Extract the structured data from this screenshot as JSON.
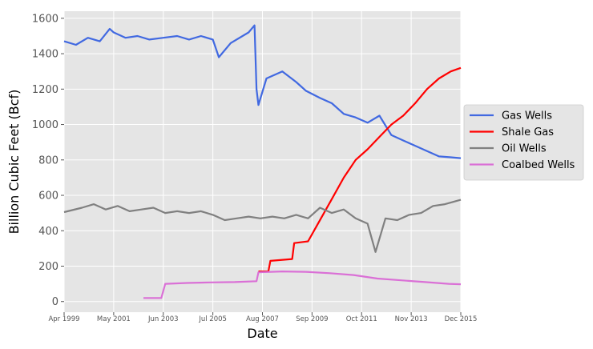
{
  "chart_data": {
    "type": "line",
    "xlabel": "Date",
    "ylabel": "Billion Cubic Feet (Bcf)",
    "x_tick_labels": [
      "Apr 1999",
      "May 2001",
      "Jun 2003",
      "Jul 2005",
      "Aug 2007",
      "Sep 2009",
      "Oct 2011",
      "Nov 2013",
      "Dec 2015"
    ],
    "x_ticks": [
      "1999-04",
      "2001-05",
      "2003-06",
      "2005-07",
      "2007-08",
      "2009-09",
      "2011-10",
      "2013-11",
      "2015-12"
    ],
    "xlim": [
      "1999-04",
      "2015-12"
    ],
    "y_ticks": [
      0,
      200,
      400,
      600,
      800,
      1000,
      1200,
      1400,
      1600
    ],
    "ylim": [
      -60,
      1640
    ],
    "grid": true,
    "legend_position": "right",
    "series": [
      {
        "name": "Gas Wells",
        "color": "#4169e1",
        "points": [
          [
            "1999-04",
            1470
          ],
          [
            "1999-10",
            1450
          ],
          [
            "2000-04",
            1490
          ],
          [
            "2000-10",
            1470
          ],
          [
            "2001-03",
            1540
          ],
          [
            "2001-05",
            1520
          ],
          [
            "2001-11",
            1490
          ],
          [
            "2002-05",
            1500
          ],
          [
            "2002-11",
            1480
          ],
          [
            "2003-06",
            1490
          ],
          [
            "2004-01",
            1500
          ],
          [
            "2004-07",
            1480
          ],
          [
            "2005-01",
            1500
          ],
          [
            "2005-07",
            1480
          ],
          [
            "2005-10",
            1380
          ],
          [
            "2006-04",
            1460
          ],
          [
            "2007-01",
            1520
          ],
          [
            "2007-04",
            1560
          ],
          [
            "2007-05",
            1200
          ],
          [
            "2007-06",
            1110
          ],
          [
            "2007-10",
            1260
          ],
          [
            "2008-06",
            1300
          ],
          [
            "2009-01",
            1240
          ],
          [
            "2009-06",
            1190
          ],
          [
            "2010-01",
            1150
          ],
          [
            "2010-07",
            1120
          ],
          [
            "2011-01",
            1060
          ],
          [
            "2011-07",
            1040
          ],
          [
            "2012-01",
            1010
          ],
          [
            "2012-07",
            1050
          ],
          [
            "2013-01",
            940
          ],
          [
            "2013-07",
            910
          ],
          [
            "2014-01",
            880
          ],
          [
            "2014-07",
            850
          ],
          [
            "2015-01",
            820
          ],
          [
            "2015-07",
            815
          ],
          [
            "2015-12",
            810
          ]
        ]
      },
      {
        "name": "Shale Gas",
        "color": "#ff0000",
        "points": [
          [
            "2007-06",
            170
          ],
          [
            "2007-11",
            170
          ],
          [
            "2007-12",
            230
          ],
          [
            "2008-11",
            240
          ],
          [
            "2008-12",
            330
          ],
          [
            "2009-07",
            340
          ],
          [
            "2009-12",
            440
          ],
          [
            "2010-06",
            560
          ],
          [
            "2011-01",
            700
          ],
          [
            "2011-07",
            800
          ],
          [
            "2012-01",
            860
          ],
          [
            "2012-07",
            930
          ],
          [
            "2013-01",
            1000
          ],
          [
            "2013-07",
            1050
          ],
          [
            "2014-01",
            1120
          ],
          [
            "2014-07",
            1200
          ],
          [
            "2015-01",
            1260
          ],
          [
            "2015-07",
            1300
          ],
          [
            "2015-12",
            1320
          ]
        ]
      },
      {
        "name": "Oil Wells",
        "color": "#808080",
        "points": [
          [
            "1999-04",
            505
          ],
          [
            "2000-01",
            530
          ],
          [
            "2000-07",
            550
          ],
          [
            "2001-01",
            520
          ],
          [
            "2001-07",
            540
          ],
          [
            "2002-01",
            510
          ],
          [
            "2002-07",
            520
          ],
          [
            "2003-01",
            530
          ],
          [
            "2003-07",
            500
          ],
          [
            "2004-01",
            510
          ],
          [
            "2004-07",
            500
          ],
          [
            "2005-01",
            510
          ],
          [
            "2005-07",
            490
          ],
          [
            "2006-01",
            460
          ],
          [
            "2006-07",
            470
          ],
          [
            "2007-01",
            480
          ],
          [
            "2007-07",
            470
          ],
          [
            "2008-01",
            480
          ],
          [
            "2008-07",
            470
          ],
          [
            "2009-01",
            490
          ],
          [
            "2009-07",
            470
          ],
          [
            "2010-01",
            530
          ],
          [
            "2010-07",
            500
          ],
          [
            "2011-01",
            520
          ],
          [
            "2011-07",
            470
          ],
          [
            "2012-01",
            440
          ],
          [
            "2012-05",
            280
          ],
          [
            "2012-10",
            470
          ],
          [
            "2013-04",
            460
          ],
          [
            "2013-10",
            490
          ],
          [
            "2014-04",
            500
          ],
          [
            "2014-10",
            540
          ],
          [
            "2015-04",
            550
          ],
          [
            "2015-12",
            575
          ]
        ]
      },
      {
        "name": "Coalbed Wells",
        "color": "#da70d6",
        "points": [
          [
            "2002-08",
            20
          ],
          [
            "2003-05",
            20
          ],
          [
            "2003-07",
            100
          ],
          [
            "2004-06",
            105
          ],
          [
            "2005-06",
            108
          ],
          [
            "2006-06",
            110
          ],
          [
            "2007-05",
            115
          ],
          [
            "2007-06",
            165
          ],
          [
            "2008-06",
            170
          ],
          [
            "2009-06",
            168
          ],
          [
            "2010-06",
            160
          ],
          [
            "2011-06",
            150
          ],
          [
            "2012-06",
            130
          ],
          [
            "2013-06",
            120
          ],
          [
            "2014-06",
            110
          ],
          [
            "2015-06",
            100
          ],
          [
            "2015-12",
            98
          ]
        ]
      }
    ]
  }
}
